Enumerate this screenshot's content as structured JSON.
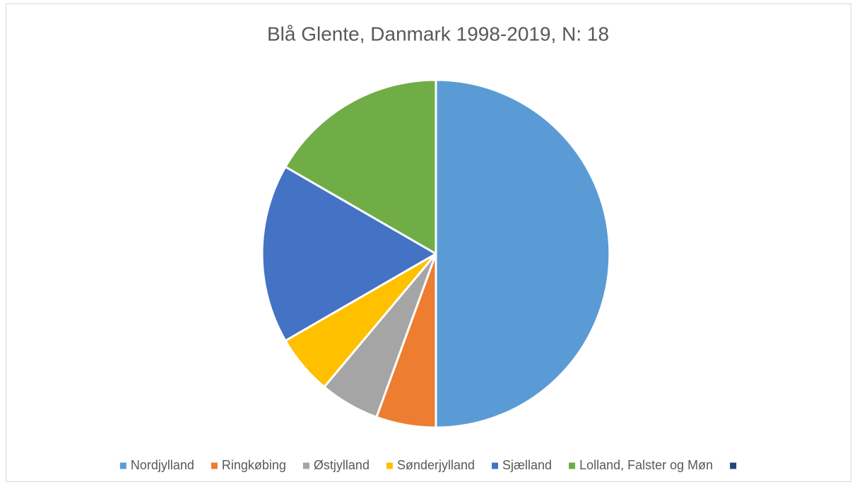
{
  "chart_data": {
    "type": "pie",
    "title": "Blå Glente, Danmark 1998-2019, N: 18",
    "categories": [
      "Nordjylland",
      "Ringkøbing",
      "Østjylland",
      "Sønderjylland",
      "Sjælland",
      "Lolland, Falster og Møn",
      null
    ],
    "values": [
      9,
      1,
      1,
      1,
      3,
      3,
      0
    ],
    "colors": [
      "#5b9bd5",
      "#ed7d31",
      "#a5a5a5",
      "#ffc000",
      "#4472c4",
      "#70ad47",
      "#264478"
    ],
    "legend": "bottom"
  }
}
